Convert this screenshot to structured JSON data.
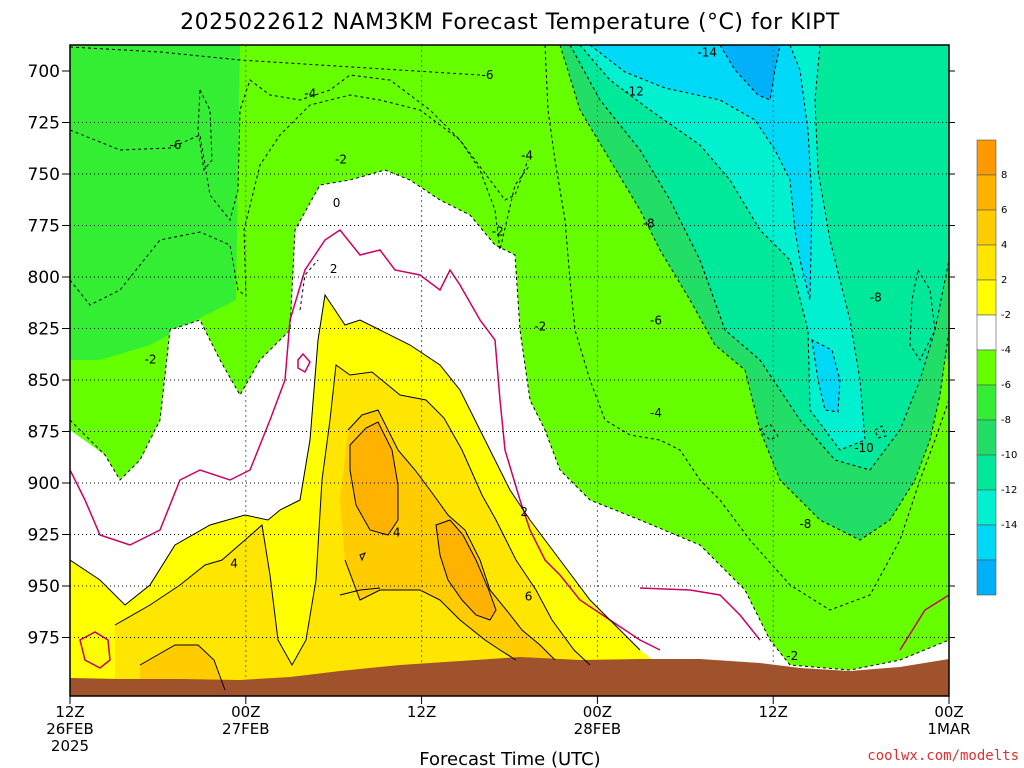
{
  "chart_data": {
    "type": "heatmap",
    "title": "2025022612 NAM3KM Forecast Temperature (°C) for KIPT",
    "xlabel": "Forecast Time (UTC)",
    "ylabel": "",
    "y_ticks": [
      700,
      725,
      750,
      775,
      800,
      825,
      850,
      875,
      900,
      925,
      950,
      975
    ],
    "ylim": [
      987,
      688
    ],
    "x_ticks": [
      {
        "h": 0,
        "lines": [
          "12Z",
          "26FEB",
          "2025"
        ]
      },
      {
        "h": 12,
        "lines": [
          "00Z",
          "27FEB"
        ]
      },
      {
        "h": 24,
        "lines": [
          "12Z"
        ]
      },
      {
        "h": 36,
        "lines": [
          "00Z",
          "28FEB"
        ]
      },
      {
        "h": 48,
        "lines": [
          "12Z"
        ]
      },
      {
        "h": 60,
        "lines": [
          "00Z",
          "1MAR"
        ]
      }
    ],
    "xlim": [
      0,
      60
    ],
    "grid": true,
    "colorbar": {
      "placement": "right",
      "bins": [
        {
          "label": "",
          "color": "#ff9900"
        },
        {
          "label": "8",
          "color": "#ffb300"
        },
        {
          "label": "6",
          "color": "#ffcc00"
        },
        {
          "label": "4",
          "color": "#ffe600"
        },
        {
          "label": "2",
          "color": "#ffff00"
        },
        {
          "label": "-2",
          "color": "#ffffff"
        },
        {
          "label": "-4",
          "color": "#66ff00"
        },
        {
          "label": "-6",
          "color": "#33ee33"
        },
        {
          "label": "-8",
          "color": "#22dd66"
        },
        {
          "label": "-10",
          "color": "#00e89a"
        },
        {
          "label": "-12",
          "color": "#00f0d0"
        },
        {
          "label": "-14",
          "color": "#00d8f8"
        },
        {
          "label": "",
          "color": "#00b0f8"
        }
      ]
    },
    "contour_labels": [
      {
        "text": "-14",
        "h": 43.5,
        "p": 691
      },
      {
        "text": "-6",
        "h": 28.5,
        "p": 702
      },
      {
        "text": "-4",
        "h": 16.4,
        "p": 711
      },
      {
        "text": "-12",
        "h": 38.5,
        "p": 710
      },
      {
        "text": "-6",
        "h": 7.2,
        "p": 736
      },
      {
        "text": "-2",
        "h": 18.5,
        "p": 743
      },
      {
        "text": "-4",
        "h": 31.2,
        "p": 741
      },
      {
        "text": "0",
        "h": 18.2,
        "p": 764
      },
      {
        "text": "-8",
        "h": 39.5,
        "p": 774
      },
      {
        "text": "-2",
        "h": 29.2,
        "p": 778
      },
      {
        "text": "2",
        "h": 18.0,
        "p": 796
      },
      {
        "text": "-8",
        "h": 55.0,
        "p": 810
      },
      {
        "text": "-6",
        "h": 40.0,
        "p": 821
      },
      {
        "text": "-2",
        "h": 32.1,
        "p": 824
      },
      {
        "text": "-2",
        "h": 5.5,
        "p": 840
      },
      {
        "text": "-4",
        "h": 40.0,
        "p": 866
      },
      {
        "text": "-10",
        "h": 54.2,
        "p": 883
      },
      {
        "text": "2",
        "h": 31.0,
        "p": 914
      },
      {
        "text": "-8",
        "h": 50.2,
        "p": 920
      },
      {
        "text": "4",
        "h": 22.3,
        "p": 924
      },
      {
        "text": "4",
        "h": 11.2,
        "p": 939
      },
      {
        "text": "6",
        "h": 31.3,
        "p": 955
      },
      {
        "text": "-2",
        "h": 49.3,
        "p": 984
      }
    ]
  },
  "footer": {
    "credit": "coolwx.com/modelts"
  }
}
